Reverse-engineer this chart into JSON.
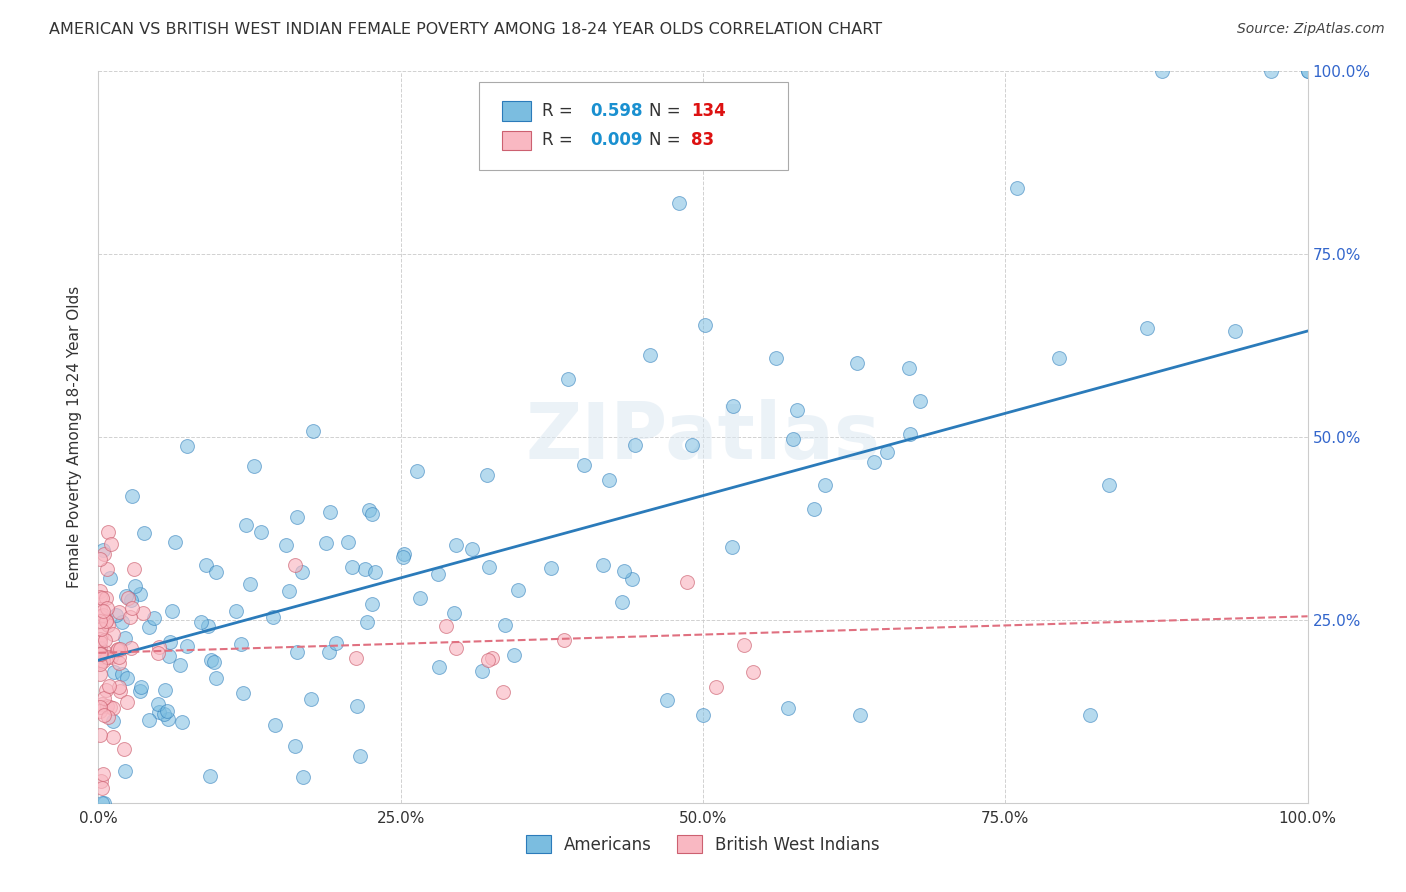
{
  "title": "AMERICAN VS BRITISH WEST INDIAN FEMALE POVERTY AMONG 18-24 YEAR OLDS CORRELATION CHART",
  "source": "Source: ZipAtlas.com",
  "ylabel": "Female Poverty Among 18-24 Year Olds",
  "xlim": [
    0,
    1.0
  ],
  "ylim": [
    0,
    1.0
  ],
  "xticks": [
    0.0,
    0.25,
    0.5,
    0.75,
    1.0
  ],
  "yticks": [
    0.0,
    0.25,
    0.5,
    0.75,
    1.0
  ],
  "xticklabels": [
    "0.0%",
    "25.0%",
    "50.0%",
    "75.0%",
    "100.0%"
  ],
  "right_yticklabels": [
    "",
    "25.0%",
    "50.0%",
    "75.0%",
    "100.0%"
  ],
  "american_R": "0.598",
  "american_N": "134",
  "bwi_R": "0.009",
  "bwi_N": "83",
  "american_color": "#7bbde0",
  "bwi_color": "#f9b8c2",
  "american_line_color": "#2b7bba",
  "bwi_line_color": "#e07080",
  "background_color": "#ffffff",
  "grid_color": "#cccccc",
  "legend_R_color": "#1a90d0",
  "legend_N_color": "#dd1111",
  "watermark": "ZIPatlas",
  "am_line_start_y": 0.195,
  "am_line_end_y": 0.645,
  "bwi_line_start_y": 0.205,
  "bwi_line_end_y": 0.255
}
